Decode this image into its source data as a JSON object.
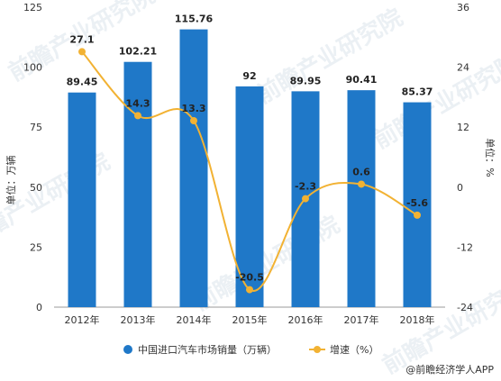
{
  "chart_data": {
    "type": "bar",
    "categories": [
      "2012年",
      "2013年",
      "2014年",
      "2015年",
      "2016年",
      "2017年",
      "2018年"
    ],
    "series": [
      {
        "name": "中国进口汽车市场销量（万辆）",
        "type": "bar",
        "axis": "left",
        "values": [
          89.45,
          102.21,
          115.76,
          92,
          89.95,
          90.41,
          85.37
        ],
        "labels": [
          "89.45",
          "102.21",
          "115.76",
          "92",
          "89.95",
          "90.41",
          "85.37"
        ],
        "color": "#1f78c8"
      },
      {
        "name": "增速（%）",
        "type": "line",
        "axis": "right",
        "values": [
          27.1,
          14.3,
          13.3,
          -20.5,
          -2.3,
          0.6,
          -5.6
        ],
        "labels": [
          "27.1",
          "14.3",
          "13.3",
          "-20.5",
          "-2.3",
          "0.6",
          "-5.6"
        ],
        "color": "#f2b233"
      }
    ],
    "ylabel_left": "单位：万辆",
    "ylabel_right": "单位：%",
    "ylim_left": [
      0,
      125
    ],
    "yticks_left": [
      0,
      25,
      50,
      75,
      100,
      125
    ],
    "ylim_right": [
      -24,
      36
    ],
    "yticks_right": [
      -24,
      -12,
      0,
      12,
      24,
      36
    ],
    "grid": false,
    "legend_position": "bottom"
  },
  "source": "@前瞻经济学人APP",
  "watermark": "前瞻产业研究院",
  "colors": {
    "bar": "#1f78c8",
    "line": "#f2b233",
    "axis": "#999999"
  }
}
